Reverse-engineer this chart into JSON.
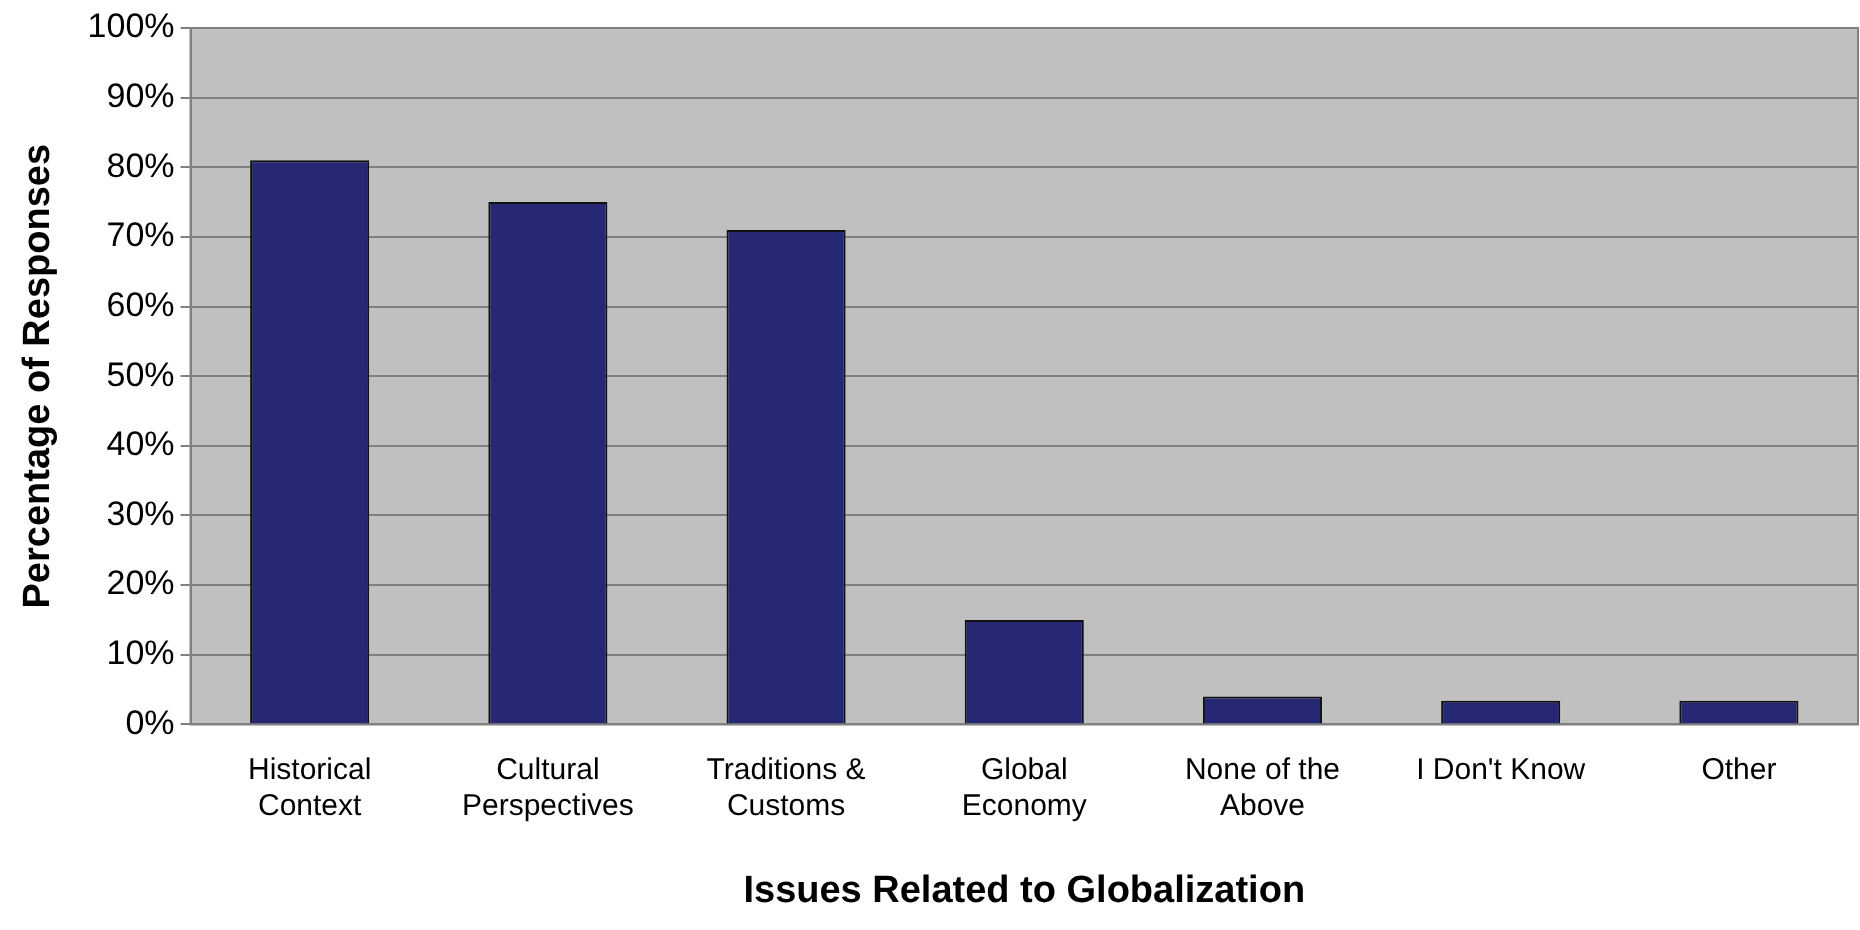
{
  "chart_data": {
    "type": "bar",
    "xlabel": "Issues Related to Globalization",
    "ylabel": "Percentage of Responses",
    "categories": [
      "Historical Context",
      "Cultural Perspectives",
      "Traditions & Customs",
      "Global Economy",
      "None of the Above",
      "I Don't Know",
      "Other"
    ],
    "values": [
      81,
      75,
      71,
      15,
      4,
      3.4,
      3.4
    ],
    "color": "#262873",
    "ylim": [
      0,
      100
    ],
    "yticks": [
      {
        "value": 0,
        "label": "0%"
      },
      {
        "value": 10,
        "label": "10%"
      },
      {
        "value": 20,
        "label": "20%"
      },
      {
        "value": 30,
        "label": "30%"
      },
      {
        "value": 40,
        "label": "40%"
      },
      {
        "value": 50,
        "label": "50%"
      },
      {
        "value": 60,
        "label": "60%"
      },
      {
        "value": 70,
        "label": "70%"
      },
      {
        "value": 80,
        "label": "80%"
      },
      {
        "value": 90,
        "label": "90%"
      },
      {
        "value": 100,
        "label": "100%"
      }
    ],
    "grid": "y",
    "legend": false
  }
}
